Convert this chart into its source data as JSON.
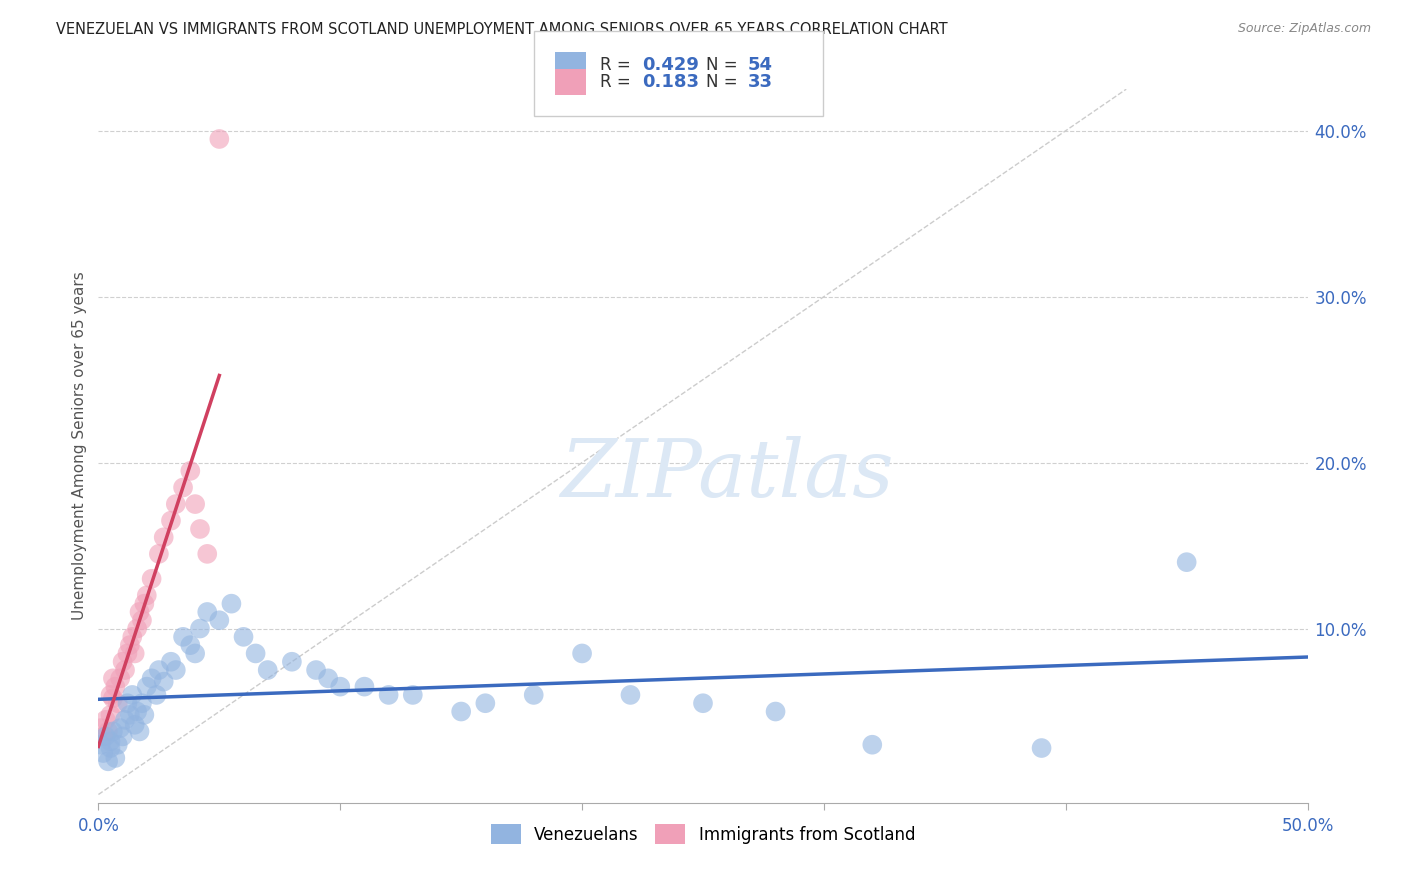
{
  "title": "VENEZUELAN VS IMMIGRANTS FROM SCOTLAND UNEMPLOYMENT AMONG SENIORS OVER 65 YEARS CORRELATION CHART",
  "source": "Source: ZipAtlas.com",
  "ylabel": "Unemployment Among Seniors over 65 years",
  "xlim": [
    0.0,
    0.5
  ],
  "ylim": [
    -0.005,
    0.425
  ],
  "xticks": [
    0.0,
    0.1,
    0.2,
    0.3,
    0.4,
    0.5
  ],
  "xtick_labels_show": [
    "0.0%",
    "",
    "",
    "",
    "",
    "50.0%"
  ],
  "yticks": [
    0.0,
    0.1,
    0.2,
    0.3,
    0.4
  ],
  "ytick_labels": [
    "",
    "10.0%",
    "20.0%",
    "30.0%",
    "40.0%"
  ],
  "legend1_label": "Venezuelans",
  "legend2_label": "Immigrants from Scotland",
  "r1": 0.429,
  "n1": 54,
  "r2": 0.183,
  "n2": 33,
  "color_venezuelan": "#92b4e0",
  "color_scotland": "#f0a0b8",
  "color_line1": "#3b6abf",
  "color_line2": "#d04060",
  "watermark_color": "#dce8f5",
  "background_color": "#ffffff",
  "venezuelan_x": [
    0.001,
    0.002,
    0.003,
    0.004,
    0.005,
    0.005,
    0.006,
    0.007,
    0.008,
    0.009,
    0.01,
    0.011,
    0.012,
    0.013,
    0.014,
    0.015,
    0.016,
    0.017,
    0.018,
    0.019,
    0.02,
    0.022,
    0.024,
    0.025,
    0.027,
    0.03,
    0.032,
    0.035,
    0.038,
    0.04,
    0.042,
    0.045,
    0.05,
    0.055,
    0.06,
    0.065,
    0.07,
    0.08,
    0.09,
    0.095,
    0.1,
    0.11,
    0.12,
    0.13,
    0.15,
    0.16,
    0.18,
    0.2,
    0.22,
    0.25,
    0.28,
    0.32,
    0.39,
    0.45
  ],
  "venezuelan_y": [
    0.03,
    0.025,
    0.035,
    0.02,
    0.028,
    0.032,
    0.038,
    0.022,
    0.03,
    0.04,
    0.035,
    0.045,
    0.055,
    0.048,
    0.06,
    0.042,
    0.05,
    0.038,
    0.055,
    0.048,
    0.065,
    0.07,
    0.06,
    0.075,
    0.068,
    0.08,
    0.075,
    0.095,
    0.09,
    0.085,
    0.1,
    0.11,
    0.105,
    0.115,
    0.095,
    0.085,
    0.075,
    0.08,
    0.075,
    0.07,
    0.065,
    0.065,
    0.06,
    0.06,
    0.05,
    0.055,
    0.06,
    0.085,
    0.06,
    0.055,
    0.05,
    0.03,
    0.028,
    0.14
  ],
  "scotland_x": [
    0.001,
    0.002,
    0.003,
    0.004,
    0.005,
    0.005,
    0.006,
    0.006,
    0.007,
    0.008,
    0.009,
    0.01,
    0.011,
    0.012,
    0.013,
    0.014,
    0.015,
    0.016,
    0.017,
    0.018,
    0.019,
    0.02,
    0.022,
    0.025,
    0.027,
    0.03,
    0.032,
    0.035,
    0.038,
    0.04,
    0.042,
    0.045,
    0.05
  ],
  "scotland_y": [
    0.04,
    0.035,
    0.045,
    0.038,
    0.06,
    0.048,
    0.058,
    0.07,
    0.065,
    0.055,
    0.07,
    0.08,
    0.075,
    0.085,
    0.09,
    0.095,
    0.085,
    0.1,
    0.11,
    0.105,
    0.115,
    0.12,
    0.13,
    0.145,
    0.155,
    0.165,
    0.175,
    0.185,
    0.195,
    0.175,
    0.16,
    0.145,
    0.395
  ]
}
